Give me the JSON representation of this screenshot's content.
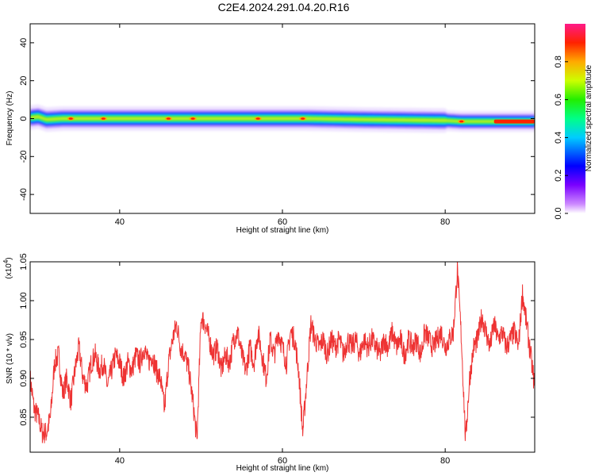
{
  "title": "C2E4.2024.291.04.20.R16",
  "chart_data": [
    {
      "type": "heatmap",
      "xlabel": "Height of straight line (km)",
      "ylabel": "Frequency (Hz)",
      "xlim": [
        29,
        91
      ],
      "ylim": [
        -50,
        50
      ],
      "x_ticks": [
        40,
        60,
        80
      ],
      "y_ticks": [
        40,
        20,
        0,
        -20,
        -40
      ],
      "colorbar": {
        "label": "Normalized spectral amplitude",
        "range": [
          0,
          1
        ],
        "ticks": [
          "0.0",
          "0.2",
          "0.4",
          "0.6",
          "0.8"
        ]
      },
      "ridge": {
        "center_freq_hz": [
          [
            29,
            0.5
          ],
          [
            30,
            1
          ],
          [
            31,
            -0.5
          ],
          [
            33,
            0
          ],
          [
            40,
            0
          ],
          [
            50,
            0
          ],
          [
            60,
            0
          ],
          [
            63,
            0
          ],
          [
            70,
            -0.5
          ],
          [
            80,
            -1
          ],
          [
            82,
            -1.5
          ],
          [
            85,
            -1.5
          ],
          [
            91,
            -1.5
          ]
        ],
        "peak_heights_km": [
          34,
          38,
          46,
          49,
          57,
          62.5,
          82,
          87,
          89
        ]
      }
    },
    {
      "type": "line",
      "xlabel": "Height of straight line (km)",
      "ylabel": "SNR (10 * v/v)",
      "y_scale_note": "(x10",
      "y_scale_exp": "4",
      "xlim": [
        29,
        91
      ],
      "ylim": [
        0.805,
        1.05
      ],
      "x_ticks": [
        40,
        60,
        80
      ],
      "y_ticks": [
        "0.85",
        "0.90",
        "0.95",
        "1.00",
        "1.05"
      ],
      "series": [
        {
          "color": "#ee3333",
          "points": [
            [
              29,
              0.9
            ],
            [
              29.5,
              0.86
            ],
            [
              30,
              0.85
            ],
            [
              30.5,
              0.83
            ],
            [
              31,
              0.83
            ],
            [
              31.5,
              0.85
            ],
            [
              32,
              0.92
            ],
            [
              32.5,
              0.93
            ],
            [
              33,
              0.88
            ],
            [
              33.5,
              0.9
            ],
            [
              34,
              0.87
            ],
            [
              34.5,
              0.91
            ],
            [
              35,
              0.94
            ],
            [
              35.5,
              0.9
            ],
            [
              36,
              0.89
            ],
            [
              36.5,
              0.92
            ],
            [
              37,
              0.93
            ],
            [
              37.5,
              0.91
            ],
            [
              38,
              0.92
            ],
            [
              38.5,
              0.89
            ],
            [
              39,
              0.91
            ],
            [
              39.5,
              0.93
            ],
            [
              40,
              0.92
            ],
            [
              40.5,
              0.9
            ],
            [
              41,
              0.92
            ],
            [
              41.5,
              0.91
            ],
            [
              42,
              0.93
            ],
            [
              42.5,
              0.92
            ],
            [
              43,
              0.94
            ],
            [
              43.5,
              0.92
            ],
            [
              44,
              0.93
            ],
            [
              44.5,
              0.91
            ],
            [
              45,
              0.9
            ],
            [
              45.5,
              0.86
            ],
            [
              46,
              0.92
            ],
            [
              46.5,
              0.95
            ],
            [
              47,
              0.97
            ],
            [
              47.5,
              0.94
            ],
            [
              48,
              0.93
            ],
            [
              48.5,
              0.91
            ],
            [
              49,
              0.87
            ],
            [
              49.5,
              0.82
            ],
            [
              50,
              0.98
            ],
            [
              50.5,
              0.97
            ],
            [
              51,
              0.95
            ],
            [
              51.5,
              0.93
            ],
            [
              52,
              0.94
            ],
            [
              52.5,
              0.91
            ],
            [
              53,
              0.93
            ],
            [
              53.5,
              0.92
            ],
            [
              54,
              0.95
            ],
            [
              54.5,
              0.96
            ],
            [
              55,
              0.93
            ],
            [
              55.5,
              0.91
            ],
            [
              56,
              0.94
            ],
            [
              56.5,
              0.92
            ],
            [
              57,
              0.96
            ],
            [
              57.5,
              0.93
            ],
            [
              58,
              0.9
            ],
            [
              58.5,
              0.95
            ],
            [
              59,
              0.93
            ],
            [
              59.5,
              0.96
            ],
            [
              60,
              0.94
            ],
            [
              60.5,
              0.92
            ],
            [
              61,
              0.96
            ],
            [
              61.5,
              0.95
            ],
            [
              62,
              0.91
            ],
            [
              62.5,
              0.83
            ],
            [
              63,
              0.9
            ],
            [
              63.5,
              0.97
            ],
            [
              64,
              0.95
            ],
            [
              64.5,
              0.94
            ],
            [
              65,
              0.95
            ],
            [
              65.5,
              0.93
            ],
            [
              66,
              0.95
            ],
            [
              66.5,
              0.94
            ],
            [
              67,
              0.95
            ],
            [
              67.5,
              0.93
            ],
            [
              68,
              0.95
            ],
            [
              68.5,
              0.94
            ],
            [
              69,
              0.95
            ],
            [
              69.5,
              0.93
            ],
            [
              70,
              0.95
            ],
            [
              70.5,
              0.94
            ],
            [
              71,
              0.95
            ],
            [
              71.5,
              0.94
            ],
            [
              72,
              0.93
            ],
            [
              72.5,
              0.95
            ],
            [
              73,
              0.94
            ],
            [
              73.5,
              0.96
            ],
            [
              74,
              0.94
            ],
            [
              74.5,
              0.95
            ],
            [
              75,
              0.93
            ],
            [
              75.5,
              0.95
            ],
            [
              76,
              0.94
            ],
            [
              76.5,
              0.95
            ],
            [
              77,
              0.93
            ],
            [
              77.5,
              0.96
            ],
            [
              78,
              0.95
            ],
            [
              78.5,
              0.94
            ],
            [
              79,
              0.95
            ],
            [
              79.5,
              0.96
            ],
            [
              80,
              0.94
            ],
            [
              80.5,
              0.95
            ],
            [
              81,
              0.96
            ],
            [
              81.5,
              1.04
            ],
            [
              82,
              0.95
            ],
            [
              82.5,
              0.82
            ],
            [
              83,
              0.9
            ],
            [
              83.5,
              0.94
            ],
            [
              84,
              0.95
            ],
            [
              84.5,
              0.98
            ],
            [
              85,
              0.96
            ],
            [
              85.5,
              0.94
            ],
            [
              86,
              0.97
            ],
            [
              86.5,
              0.95
            ],
            [
              87,
              0.96
            ],
            [
              87.5,
              0.94
            ],
            [
              88,
              0.95
            ],
            [
              88.5,
              0.96
            ],
            [
              89,
              0.94
            ],
            [
              89.5,
              1.01
            ],
            [
              90,
              0.97
            ],
            [
              90.5,
              0.93
            ],
            [
              91,
              0.89
            ]
          ]
        }
      ]
    }
  ]
}
